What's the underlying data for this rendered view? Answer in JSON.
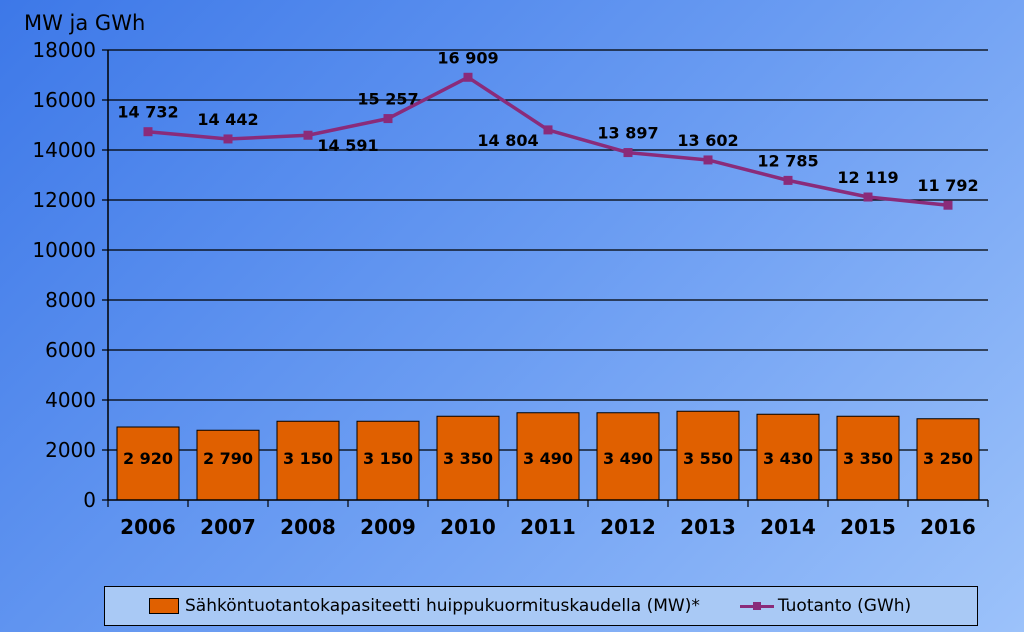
{
  "chart_data": {
    "type": "bar+line",
    "ylabel": "MW ja GWh",
    "ylim": [
      0,
      18000
    ],
    "yticks": [
      "0",
      "2000",
      "4000",
      "6000",
      "8000",
      "10000",
      "12000",
      "14000",
      "16000",
      "18000"
    ],
    "grid": true,
    "categories": [
      "2006",
      "2007",
      "2008",
      "2009",
      "2010",
      "2011",
      "2012",
      "2013",
      "2014",
      "2015",
      "2016"
    ],
    "series": [
      {
        "name": "Sähköntuotantokapasiteetti huippukuormituskaudella (MW)*",
        "type": "bar",
        "color": "#e06000",
        "values": [
          2920,
          2790,
          3150,
          3150,
          3350,
          3490,
          3490,
          3550,
          3430,
          3350,
          3250
        ],
        "labels": [
          "2 920",
          "2 790",
          "3 150",
          "3 150",
          "3 350",
          "3 490",
          "3 490",
          "3 550",
          "3 430",
          "3 350",
          "3 250"
        ]
      },
      {
        "name": "Tuotanto (GWh)",
        "type": "line",
        "color": "#8a2b7a",
        "values": [
          14732,
          14442,
          14591,
          15257,
          16909,
          14804,
          13897,
          13602,
          12785,
          12119,
          11792
        ],
        "labels": [
          "14 732",
          "14 442",
          "14 591",
          "15 257",
          "16 909",
          "14 804",
          "13 897",
          "13 602",
          "12 785",
          "12 119",
          "11 792"
        ]
      }
    ],
    "legend_position": "bottom"
  },
  "legend": {
    "bar_label": "Sähköntuotantokapasiteetti huippukuormituskaudella (MW)*",
    "line_label": "Tuotanto (GWh)"
  }
}
